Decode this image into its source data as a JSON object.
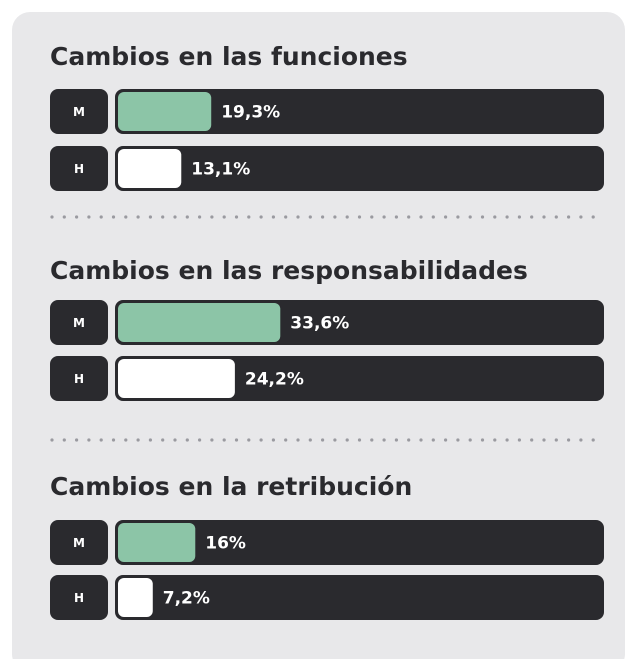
{
  "chart_data": [
    {
      "type": "bar",
      "title": "Cambios en las funciones",
      "categories": [
        "M",
        "H"
      ],
      "values": [
        19.3,
        13.1
      ],
      "value_labels": [
        "19,3%",
        "13,1%"
      ],
      "colors": [
        "#8cc5a7",
        "#ffffff"
      ],
      "xlim": [
        0,
        100
      ]
    },
    {
      "type": "bar",
      "title": "Cambios en las responsabilidades",
      "categories": [
        "M",
        "H"
      ],
      "values": [
        33.6,
        24.2
      ],
      "value_labels": [
        "33,6%",
        "24,2%"
      ],
      "colors": [
        "#8cc5a7",
        "#ffffff"
      ],
      "xlim": [
        0,
        100
      ]
    },
    {
      "type": "bar",
      "title": "Cambios en la retribución",
      "categories": [
        "M",
        "H"
      ],
      "values": [
        16,
        7.2
      ],
      "value_labels": [
        "16%",
        "7,2%"
      ],
      "colors": [
        "#8cc5a7",
        "#ffffff"
      ],
      "xlim": [
        0,
        100
      ]
    }
  ]
}
